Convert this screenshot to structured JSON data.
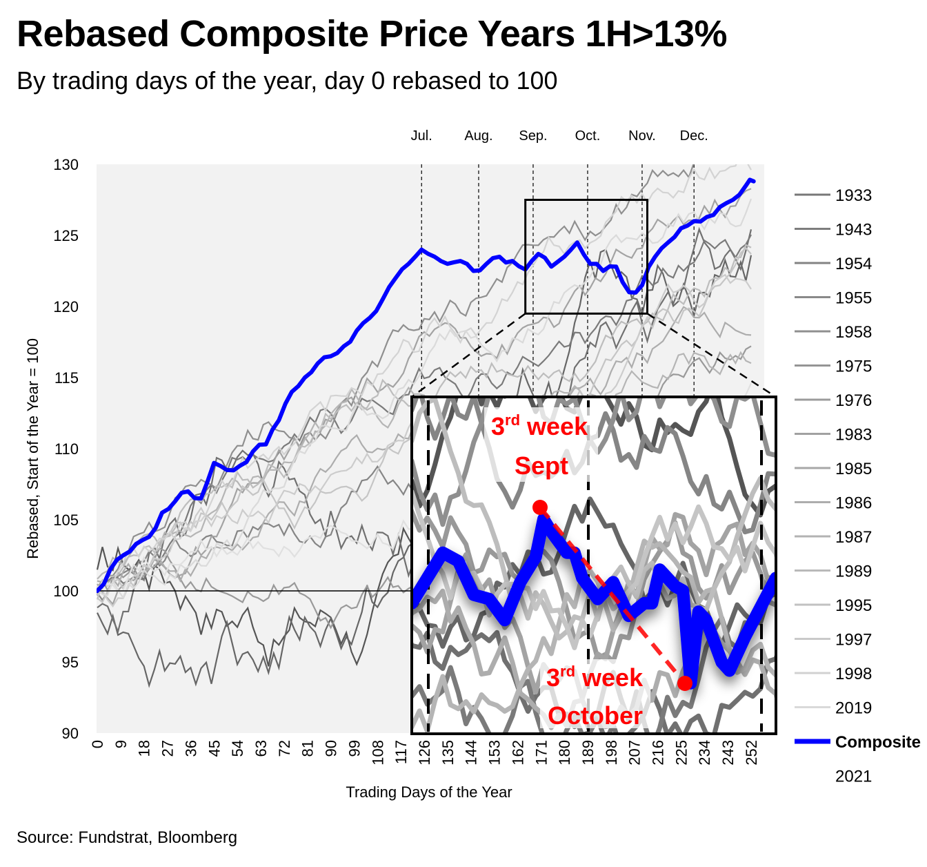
{
  "title": "Rebased Composite Price Years 1H>13%",
  "subtitle": "By trading days of the year, day 0 rebased to 100",
  "source": "Source: Fundstrat, Bloomberg",
  "colors": {
    "composite": "#0000ff",
    "callout": "#ff0000",
    "plot_background": "#f2f2f2"
  },
  "chart_data": {
    "type": "line",
    "xlabel": "Trading Days of the Year",
    "ylabel": "Rebased,  Start of the Year = 100",
    "xlim": [
      0,
      256
    ],
    "ylim": [
      90,
      130
    ],
    "x_ticks": [
      0,
      9,
      18,
      27,
      36,
      45,
      54,
      63,
      72,
      81,
      90,
      99,
      108,
      117,
      126,
      135,
      144,
      153,
      162,
      171,
      180,
      189,
      198,
      207,
      216,
      225,
      234,
      243,
      252
    ],
    "y_ticks": [
      90,
      95,
      100,
      105,
      110,
      115,
      120,
      125,
      130
    ],
    "month_markers": [
      {
        "label": "Jul.",
        "day": 125
      },
      {
        "label": "Aug.",
        "day": 147
      },
      {
        "label": "Sep.",
        "day": 168
      },
      {
        "label": "Oct.",
        "day": 189
      },
      {
        "label": "Nov.",
        "day": 210
      },
      {
        "label": "Dec.",
        "day": 230
      }
    ],
    "reference_line": 100,
    "legend_position": "right",
    "legend": [
      "1933",
      "1943",
      "1954",
      "1955",
      "1958",
      "1975",
      "1976",
      "1983",
      "1985",
      "1986",
      "1987",
      "1989",
      "1995",
      "1997",
      "1998",
      "2019",
      "Composite",
      "2021"
    ],
    "series": [
      {
        "name": "Composite",
        "x": [
          0,
          5,
          10,
          15,
          20,
          25,
          30,
          35,
          40,
          45,
          50,
          55,
          60,
          65,
          70,
          75,
          80,
          85,
          90,
          95,
          100,
          105,
          110,
          115,
          120,
          125,
          130,
          135,
          140,
          145,
          150,
          155,
          160,
          165,
          170,
          175,
          180,
          185,
          190,
          195,
          200,
          205,
          210,
          215,
          220,
          225,
          230,
          235,
          240,
          245,
          250,
          253
        ],
        "values": [
          100,
          101.5,
          102.5,
          103.3,
          103.8,
          105.5,
          106.3,
          107.0,
          106.5,
          109.0,
          108.5,
          108.8,
          109.8,
          110.3,
          112.0,
          114.0,
          115.0,
          116.0,
          116.5,
          117.2,
          118.3,
          119.2,
          120.5,
          122.0,
          123.0,
          124.0,
          123.5,
          123.0,
          123.2,
          122.5,
          123.0,
          123.5,
          123.2,
          122.6,
          123.7,
          122.8,
          123.5,
          124.5,
          123.0,
          122.5,
          122.8,
          121.0,
          121.5,
          123.5,
          124.5,
          125.5,
          126.0,
          126.3,
          127.0,
          127.5,
          128.5,
          128.8
        ]
      },
      {
        "name": "2021",
        "x": [],
        "values": []
      }
    ],
    "zoom_box": {
      "x_range": [
        165,
        212
      ],
      "y_range": [
        119.5,
        127.5
      ]
    },
    "annotations": [
      {
        "text": "Sept",
        "superscript": "rd",
        "prefix": "3",
        "suffix": " week",
        "day": 168,
        "value": 124.5
      },
      {
        "text": "October",
        "superscript": "rd",
        "prefix": "3",
        "suffix": " week",
        "day": 201,
        "value": 120.5
      }
    ]
  },
  "callouts": {
    "sept_line1_num": "3",
    "sept_line1_sup": "rd",
    "sept_line1_rest": " week",
    "sept_line2": "Sept",
    "oct_line1_num": "3",
    "oct_line1_sup": "rd",
    "oct_line1_rest": " week",
    "oct_line2": "October"
  }
}
